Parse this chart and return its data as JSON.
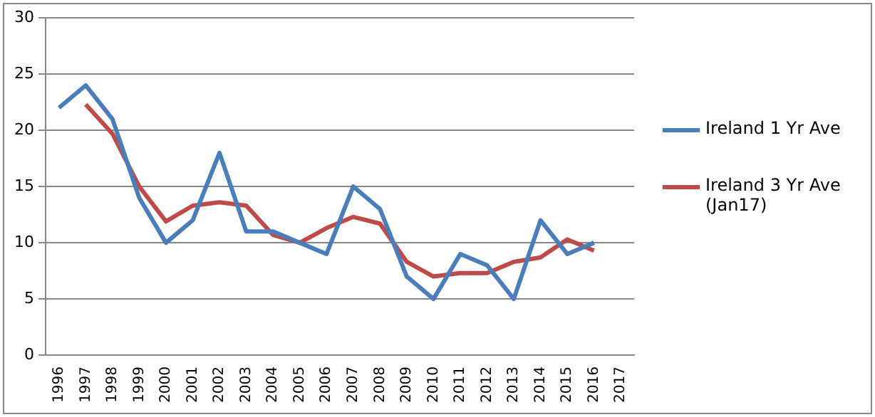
{
  "chart_data": {
    "type": "line",
    "categories": [
      "1996",
      "1997",
      "1998",
      "1999",
      "2000",
      "2001",
      "2002",
      "2003",
      "2004",
      "2005",
      "2006",
      "2007",
      "2008",
      "2009",
      "2010",
      "2011",
      "2012",
      "2013",
      "2014",
      "2015",
      "2016",
      "2017"
    ],
    "series": [
      {
        "name": "Ireland 1 Yr Ave",
        "color": "#4a7ebb",
        "values": [
          22,
          24,
          21,
          14,
          10,
          12,
          18,
          11,
          11,
          10,
          9,
          15,
          13,
          7,
          5,
          9,
          8,
          5,
          12,
          9,
          10,
          null
        ]
      },
      {
        "name": "Ireland 3 Yr Ave (Jan17)",
        "color": "#be4b48",
        "values": [
          null,
          22.3,
          19.7,
          15,
          11.9,
          13.3,
          13.6,
          13.3,
          10.7,
          10,
          11.3,
          12.3,
          11.7,
          8.3,
          7,
          7.3,
          7.3,
          8.3,
          8.7,
          10.3,
          9.3,
          null
        ]
      }
    ],
    "ylim": [
      0,
      30
    ],
    "yticks": [
      0,
      5,
      10,
      15,
      20,
      25,
      30
    ],
    "grid": "y",
    "legend": "right",
    "marker": "none",
    "line_style": "solid"
  }
}
